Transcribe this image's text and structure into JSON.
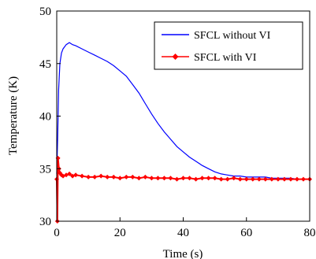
{
  "chart_data": {
    "type": "line",
    "title": "",
    "xlabel": "Time (s)",
    "ylabel": "Temperature (K)",
    "xlim": [
      0,
      80
    ],
    "ylim": [
      30,
      50
    ],
    "xticks": [
      "0",
      "20",
      "40",
      "60",
      "80"
    ],
    "yticks": [
      "30",
      "35",
      "40",
      "45",
      "50"
    ],
    "grid": false,
    "legend": "top-right",
    "series": [
      {
        "name": "SFCL without VI",
        "color": "#0000ff",
        "marker": "none",
        "x": [
          0,
          0.3,
          0.6,
          1,
          1.5,
          2,
          3,
          4,
          5,
          6,
          8,
          10,
          12,
          14,
          16,
          18,
          20,
          22,
          24,
          26,
          28,
          30,
          32,
          34,
          36,
          38,
          40,
          42,
          44,
          46,
          48,
          50,
          52,
          54,
          56,
          58,
          60,
          62,
          64,
          66,
          68,
          70,
          72,
          74,
          76,
          78,
          80
        ],
        "y": [
          34.5,
          38.0,
          42.5,
          45.0,
          46.0,
          46.4,
          46.8,
          47.0,
          46.8,
          46.7,
          46.4,
          46.1,
          45.8,
          45.5,
          45.2,
          44.8,
          44.3,
          43.8,
          43.0,
          42.2,
          41.2,
          40.2,
          39.3,
          38.5,
          37.8,
          37.1,
          36.6,
          36.1,
          35.7,
          35.3,
          35.0,
          34.7,
          34.5,
          34.4,
          34.3,
          34.3,
          34.2,
          34.2,
          34.2,
          34.2,
          34.1,
          34.1,
          34.1,
          34.1,
          34.0,
          34.0,
          34.0
        ]
      },
      {
        "name": "SFCL with VI",
        "color": "#ff0000",
        "marker": "diamond",
        "x": [
          0,
          0.2,
          0.4,
          0.7,
          1,
          1.5,
          2,
          3,
          4,
          5,
          6,
          8,
          10,
          12,
          14,
          16,
          18,
          20,
          22,
          24,
          26,
          28,
          30,
          32,
          34,
          36,
          38,
          40,
          42,
          44,
          46,
          48,
          50,
          52,
          54,
          56,
          58,
          60,
          62,
          64,
          66,
          68,
          70,
          72,
          74,
          76,
          78,
          80
        ],
        "y": [
          34.0,
          30.0,
          36.0,
          35.0,
          34.6,
          34.4,
          34.3,
          34.4,
          34.5,
          34.3,
          34.4,
          34.3,
          34.2,
          34.2,
          34.3,
          34.2,
          34.2,
          34.1,
          34.2,
          34.2,
          34.1,
          34.2,
          34.1,
          34.1,
          34.1,
          34.1,
          34.0,
          34.1,
          34.1,
          34.0,
          34.1,
          34.1,
          34.1,
          34.0,
          34.0,
          34.1,
          34.0,
          34.0,
          34.0,
          34.0,
          34.0,
          34.0,
          34.0,
          34.0,
          34.0,
          34.0,
          34.0,
          34.0
        ]
      }
    ]
  }
}
